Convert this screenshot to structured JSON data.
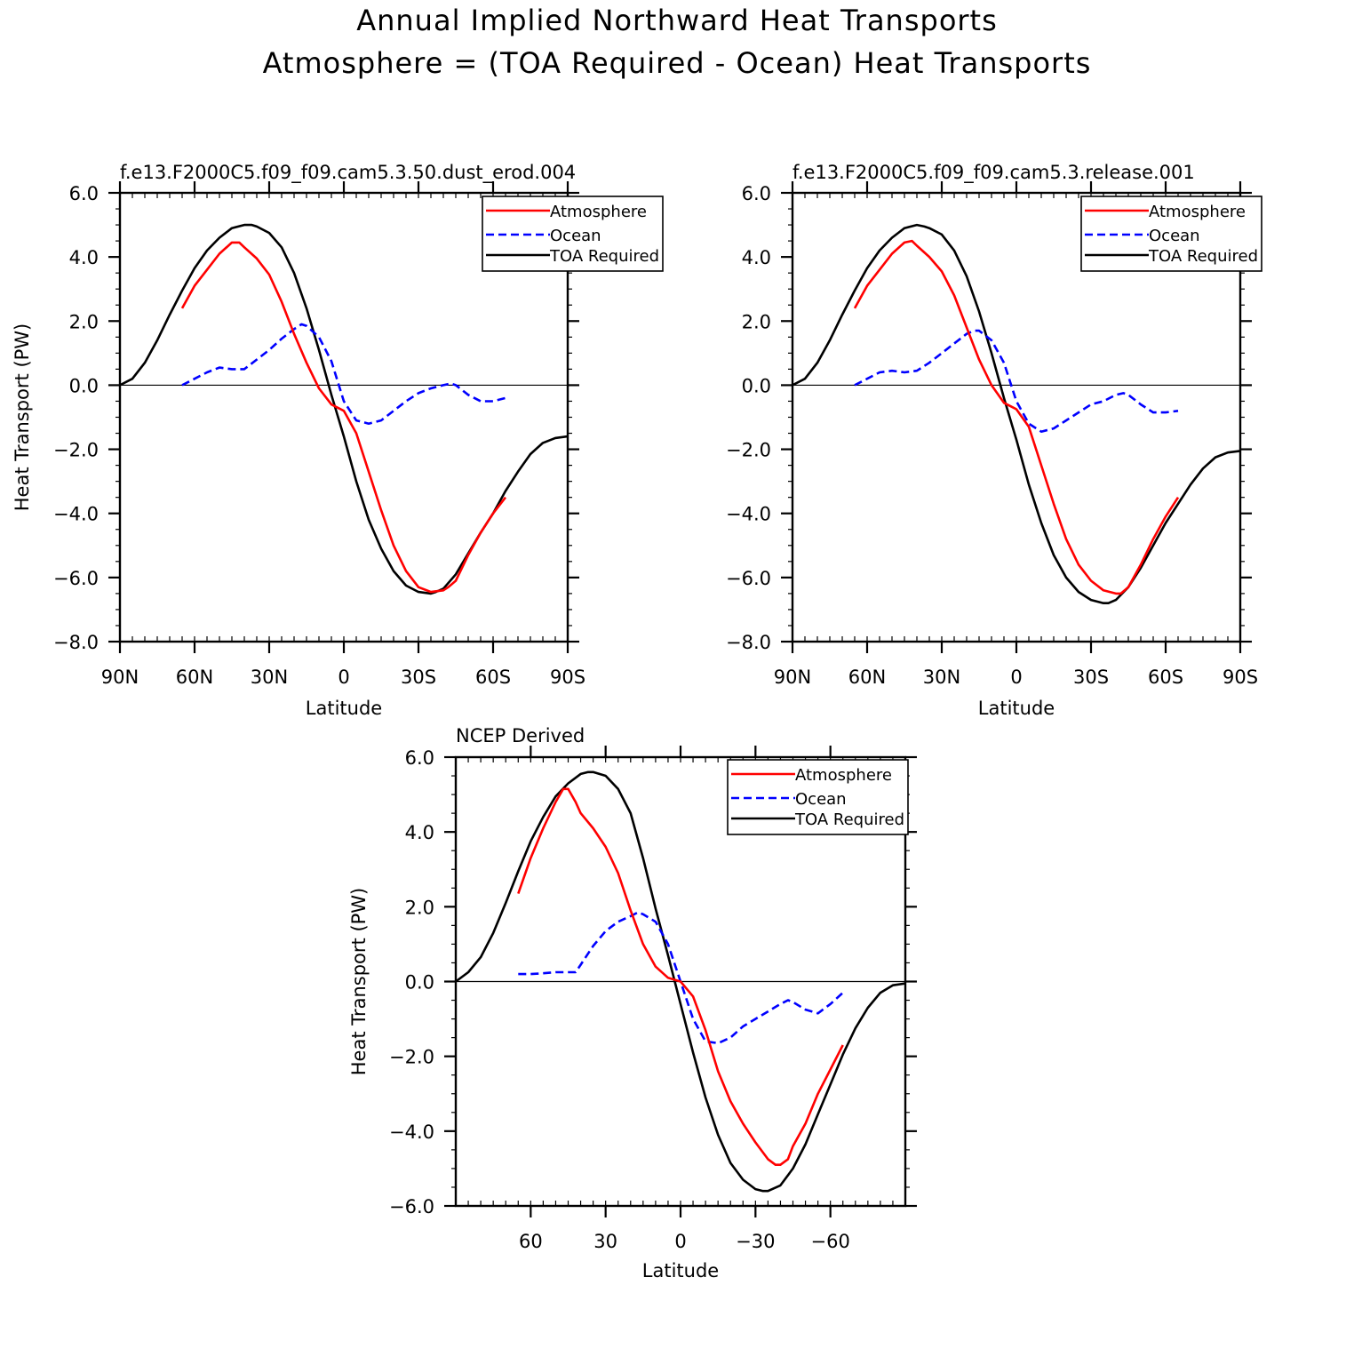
{
  "figure": {
    "title_line1": "Annual Implied Northward Heat Transports",
    "title_line2": "Atmosphere = (TOA Required - Ocean) Heat Transports"
  },
  "colors": {
    "atmosphere": "#ff0000",
    "ocean": "#0000ff",
    "toa": "#000000",
    "axis": "#000000"
  },
  "chart_data": [
    {
      "type": "line",
      "title": "f.e13.F2000C5.f09_f09.cam5.3.50.dust_erod.004",
      "xlabel": "Latitude",
      "ylabel": "Heat Transport (PW)",
      "xlim": [
        90,
        -90
      ],
      "ylim": [
        -8,
        6
      ],
      "yticks": [
        6,
        4,
        2,
        0,
        -2,
        -4,
        -6,
        -8
      ],
      "ytick_labels": [
        "6.0",
        "4.0",
        "2.0",
        "0.0",
        "-2.0",
        "-4.0",
        "-6.0",
        "-8.0"
      ],
      "xticks": [
        90,
        60,
        30,
        0,
        -30,
        -60,
        -90
      ],
      "xtick_labels": [
        "90N",
        "60N",
        "30N",
        "0",
        "30S",
        "60S",
        "90S"
      ],
      "legend_position": "top-right",
      "series": [
        {
          "name": "Atmosphere",
          "style": "solid",
          "color": "red",
          "x": [
            65,
            60,
            55,
            50,
            45,
            42,
            40,
            35,
            30,
            25,
            20,
            15,
            10,
            5,
            0,
            -5,
            -10,
            -15,
            -20,
            -25,
            -30,
            -35,
            -40,
            -42,
            -45,
            -50,
            -55,
            -60,
            -65
          ],
          "y": [
            2.4,
            3.1,
            3.6,
            4.1,
            4.45,
            4.45,
            4.3,
            3.95,
            3.45,
            2.6,
            1.6,
            0.7,
            -0.1,
            -0.6,
            -0.8,
            -1.5,
            -2.7,
            -3.9,
            -5.0,
            -5.8,
            -6.3,
            -6.45,
            -6.4,
            -6.3,
            -6.1,
            -5.3,
            -4.6,
            -4.0,
            -3.5
          ]
        },
        {
          "name": "Ocean",
          "style": "dashed",
          "color": "blue",
          "x": [
            65,
            60,
            55,
            50,
            45,
            40,
            35,
            30,
            25,
            20,
            17,
            15,
            10,
            5,
            0,
            -5,
            -10,
            -15,
            -20,
            -25,
            -30,
            -35,
            -40,
            -43,
            -45,
            -50,
            -55,
            -60,
            -65
          ],
          "y": [
            0.0,
            0.2,
            0.4,
            0.55,
            0.5,
            0.5,
            0.8,
            1.1,
            1.45,
            1.75,
            1.9,
            1.85,
            1.5,
            0.75,
            -0.5,
            -1.1,
            -1.2,
            -1.1,
            -0.8,
            -0.5,
            -0.25,
            -0.1,
            0.0,
            0.05,
            0.0,
            -0.3,
            -0.5,
            -0.5,
            -0.4
          ]
        },
        {
          "name": "TOA Required",
          "style": "solid",
          "color": "black",
          "x": [
            90,
            85,
            80,
            75,
            70,
            65,
            60,
            55,
            50,
            45,
            40,
            37,
            35,
            30,
            25,
            20,
            15,
            10,
            5,
            0,
            -5,
            -10,
            -15,
            -20,
            -25,
            -30,
            -35,
            -37,
            -40,
            -45,
            -50,
            -55,
            -60,
            -65,
            -70,
            -75,
            -80,
            -85,
            -90
          ],
          "y": [
            0.0,
            0.2,
            0.7,
            1.4,
            2.2,
            2.95,
            3.65,
            4.2,
            4.6,
            4.9,
            5.0,
            5.0,
            4.95,
            4.75,
            4.3,
            3.5,
            2.4,
            1.1,
            -0.3,
            -1.6,
            -3.0,
            -4.2,
            -5.1,
            -5.8,
            -6.25,
            -6.45,
            -6.5,
            -6.45,
            -6.35,
            -5.9,
            -5.25,
            -4.6,
            -4.0,
            -3.3,
            -2.7,
            -2.15,
            -1.8,
            -1.65,
            -1.6
          ]
        }
      ]
    },
    {
      "type": "line",
      "title": "f.e13.F2000C5.f09_f09.cam5.3.release.001",
      "xlabel": "Latitude",
      "ylabel": "",
      "xlim": [
        90,
        -90
      ],
      "ylim": [
        -8,
        6
      ],
      "yticks": [
        6,
        4,
        2,
        0,
        -2,
        -4,
        -6,
        -8
      ],
      "ytick_labels": [
        "6.0",
        "4.0",
        "2.0",
        "0.0",
        "-2.0",
        "-4.0",
        "-6.0",
        "-8.0"
      ],
      "xticks": [
        90,
        60,
        30,
        0,
        -30,
        -60,
        -90
      ],
      "xtick_labels": [
        "90N",
        "60N",
        "30N",
        "0",
        "30S",
        "60S",
        "90S"
      ],
      "legend_position": "top-right",
      "series": [
        {
          "name": "Atmosphere",
          "style": "solid",
          "color": "red",
          "x": [
            65,
            60,
            55,
            50,
            45,
            42,
            40,
            35,
            30,
            25,
            20,
            15,
            10,
            5,
            0,
            -5,
            -10,
            -15,
            -20,
            -25,
            -30,
            -35,
            -40,
            -42,
            -45,
            -50,
            -55,
            -60,
            -65
          ],
          "y": [
            2.4,
            3.1,
            3.6,
            4.1,
            4.45,
            4.5,
            4.35,
            4.0,
            3.55,
            2.8,
            1.8,
            0.8,
            0.0,
            -0.55,
            -0.75,
            -1.3,
            -2.5,
            -3.7,
            -4.8,
            -5.6,
            -6.1,
            -6.4,
            -6.5,
            -6.5,
            -6.3,
            -5.6,
            -4.8,
            -4.1,
            -3.5
          ]
        },
        {
          "name": "Ocean",
          "style": "dashed",
          "color": "blue",
          "x": [
            65,
            60,
            55,
            50,
            45,
            40,
            35,
            30,
            25,
            20,
            17,
            15,
            10,
            5,
            0,
            -5,
            -10,
            -15,
            -20,
            -25,
            -30,
            -35,
            -40,
            -43,
            -45,
            -50,
            -55,
            -60,
            -65
          ],
          "y": [
            0.0,
            0.2,
            0.4,
            0.45,
            0.4,
            0.45,
            0.7,
            1.0,
            1.3,
            1.6,
            1.7,
            1.7,
            1.4,
            0.7,
            -0.5,
            -1.2,
            -1.45,
            -1.35,
            -1.1,
            -0.85,
            -0.6,
            -0.5,
            -0.3,
            -0.25,
            -0.3,
            -0.6,
            -0.85,
            -0.85,
            -0.8
          ]
        },
        {
          "name": "TOA Required",
          "style": "solid",
          "color": "black",
          "x": [
            90,
            85,
            80,
            75,
            70,
            65,
            60,
            55,
            50,
            45,
            40,
            37,
            35,
            30,
            25,
            20,
            15,
            10,
            5,
            0,
            -5,
            -10,
            -15,
            -20,
            -25,
            -30,
            -35,
            -37,
            -40,
            -45,
            -50,
            -55,
            -60,
            -65,
            -70,
            -75,
            -80,
            -85,
            -90
          ],
          "y": [
            0.0,
            0.2,
            0.7,
            1.4,
            2.2,
            2.95,
            3.65,
            4.2,
            4.6,
            4.9,
            5.0,
            4.95,
            4.9,
            4.7,
            4.2,
            3.4,
            2.3,
            1.0,
            -0.4,
            -1.7,
            -3.1,
            -4.3,
            -5.3,
            -6.0,
            -6.45,
            -6.7,
            -6.8,
            -6.8,
            -6.7,
            -6.3,
            -5.7,
            -5.0,
            -4.3,
            -3.7,
            -3.1,
            -2.6,
            -2.25,
            -2.1,
            -2.05
          ]
        }
      ]
    },
    {
      "type": "line",
      "title": "NCEP Derived",
      "xlabel": "Latitude",
      "ylabel": "Heat Transport (PW)",
      "xlim": [
        90,
        -90
      ],
      "ylim": [
        -6,
        6
      ],
      "yticks": [
        6,
        4,
        2,
        0,
        -2,
        -4,
        -6
      ],
      "ytick_labels": [
        "6.0",
        "4.0",
        "2.0",
        "0.0",
        "-2.0",
        "-4.0",
        "-6.0"
      ],
      "xticks": [
        60,
        30,
        0,
        -30,
        -60
      ],
      "xtick_labels": [
        "60",
        "30",
        "0",
        "-30",
        "-60"
      ],
      "legend_position": "top-right",
      "series": [
        {
          "name": "Atmosphere",
          "style": "solid",
          "color": "red",
          "x": [
            65,
            60,
            55,
            50,
            47,
            45,
            42,
            40,
            35,
            30,
            25,
            20,
            15,
            10,
            5,
            0,
            -5,
            -10,
            -15,
            -20,
            -25,
            -30,
            -35,
            -38,
            -40,
            -43,
            -45,
            -50,
            -55,
            -60,
            -65
          ],
          "y": [
            2.35,
            3.3,
            4.1,
            4.8,
            5.15,
            5.15,
            4.8,
            4.5,
            4.1,
            3.6,
            2.9,
            1.9,
            1.0,
            0.4,
            0.1,
            0.0,
            -0.4,
            -1.3,
            -2.4,
            -3.2,
            -3.8,
            -4.3,
            -4.75,
            -4.9,
            -4.9,
            -4.75,
            -4.4,
            -3.8,
            -3.0,
            -2.35,
            -1.7
          ]
        },
        {
          "name": "Ocean",
          "style": "dashed",
          "color": "blue",
          "x": [
            65,
            60,
            55,
            50,
            45,
            42,
            40,
            35,
            30,
            25,
            20,
            17,
            15,
            10,
            5,
            0,
            -5,
            -10,
            -15,
            -20,
            -25,
            -30,
            -35,
            -40,
            -43,
            -45,
            -50,
            -55,
            -60,
            -65
          ],
          "y": [
            0.2,
            0.2,
            0.22,
            0.25,
            0.25,
            0.25,
            0.45,
            0.95,
            1.35,
            1.6,
            1.75,
            1.85,
            1.8,
            1.6,
            1.0,
            0.0,
            -1.0,
            -1.6,
            -1.65,
            -1.5,
            -1.2,
            -1.0,
            -0.8,
            -0.6,
            -0.5,
            -0.55,
            -0.75,
            -0.85,
            -0.6,
            -0.3
          ]
        },
        {
          "name": "TOA Required",
          "style": "solid",
          "color": "black",
          "x": [
            90,
            85,
            80,
            75,
            70,
            65,
            60,
            55,
            50,
            45,
            40,
            37,
            35,
            30,
            25,
            20,
            15,
            10,
            5,
            0,
            -5,
            -10,
            -15,
            -20,
            -25,
            -30,
            -33,
            -35,
            -40,
            -45,
            -50,
            -55,
            -60,
            -65,
            -70,
            -75,
            -80,
            -85,
            -90
          ],
          "y": [
            0.0,
            0.25,
            0.65,
            1.3,
            2.1,
            2.95,
            3.75,
            4.4,
            4.95,
            5.3,
            5.55,
            5.6,
            5.6,
            5.5,
            5.15,
            4.5,
            3.3,
            1.95,
            0.7,
            -0.6,
            -1.9,
            -3.1,
            -4.1,
            -4.85,
            -5.3,
            -5.55,
            -5.6,
            -5.6,
            -5.45,
            -5.0,
            -4.35,
            -3.55,
            -2.75,
            -1.95,
            -1.25,
            -0.7,
            -0.3,
            -0.1,
            -0.05
          ]
        }
      ]
    }
  ]
}
